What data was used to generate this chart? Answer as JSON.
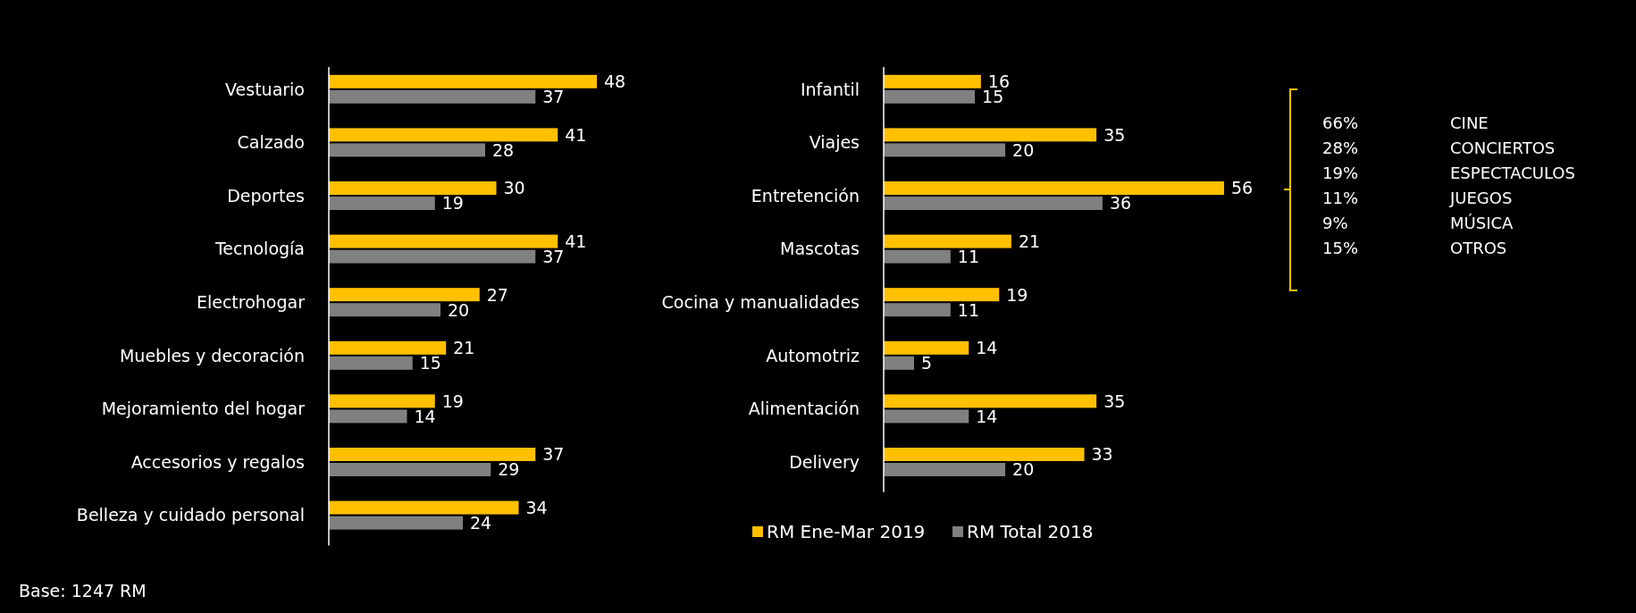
{
  "chart_data": [
    {
      "type": "bar",
      "orientation": "horizontal",
      "categories": [
        "Vestuario",
        "Calzado",
        "Deportes",
        "Tecnología",
        "Electrohogar",
        "Muebles y decoración",
        "Mejoramiento  del hogar",
        "Accesorios y regalos",
        "Belleza y cuidado personal"
      ],
      "series": [
        {
          "color": "#ffc000",
          "values": [
            48,
            41,
            30,
            41,
            27,
            21,
            19,
            37,
            34
          ]
        },
        {
          "color": "#808080",
          "values": [
            37,
            28,
            19,
            37,
            20,
            15,
            14,
            29,
            24
          ]
        }
      ],
      "data_labels": true,
      "annotations": [
        "Base: 1247 RM"
      ]
    },
    {
      "type": "bar",
      "orientation": "horizontal",
      "categories": [
        "Infantil",
        "Viajes",
        "Entretención",
        "Mascotas",
        "Cocina y manualidades",
        "Automotriz",
        "Alimentación",
        "Delivery"
      ],
      "series": [
        {
          "name": "RM Ene-Mar 2019",
          "color": "#ffc000",
          "values": [
            16,
            35,
            56,
            21,
            19,
            14,
            35,
            33
          ]
        },
        {
          "name": "RM Total 2018",
          "color": "#808080",
          "values": [
            15,
            20,
            36,
            11,
            11,
            5,
            14,
            20
          ]
        }
      ],
      "data_labels": true,
      "legend": "bottom"
    },
    {
      "type": "other",
      "categories": [
        "CINE",
        "CONCIERTOS",
        "ESPECTACULOS",
        "JUEGOS",
        "MÚSICA",
        "OTROS"
      ],
      "value_labels": [
        "66%",
        "28%",
        "19%",
        "11%",
        "9%",
        "15%"
      ]
    }
  ]
}
